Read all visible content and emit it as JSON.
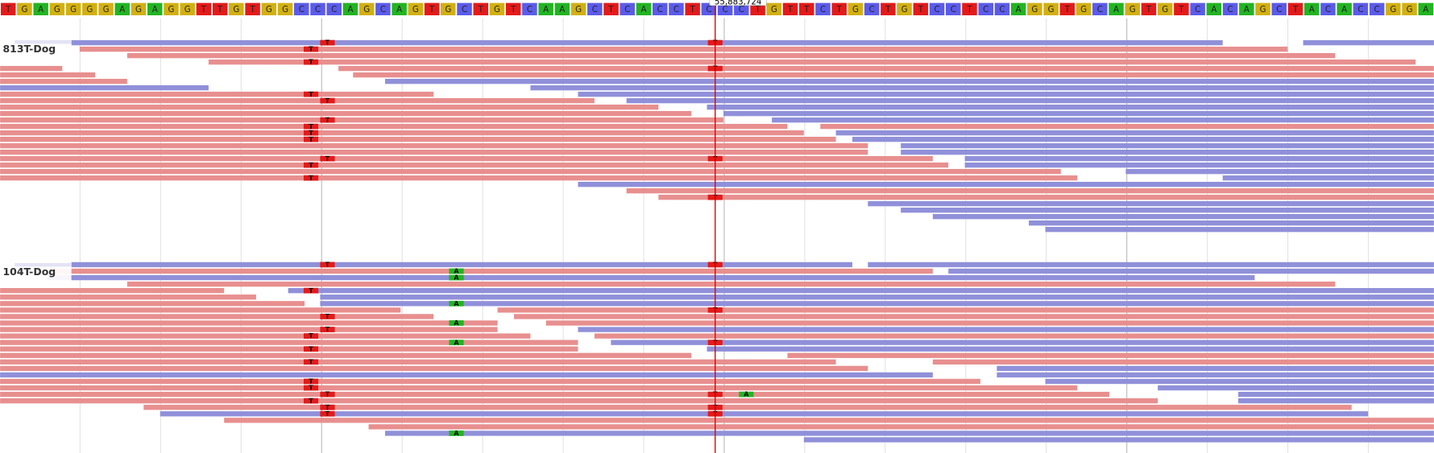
{
  "reference": {
    "bases": [
      "T",
      "G",
      "A",
      "G",
      "G",
      "G",
      "G",
      "A",
      "G",
      "A",
      "G",
      "G",
      "T",
      "T",
      "G",
      "T",
      "G",
      "G",
      "C",
      "C",
      "C",
      "A",
      "G",
      "C",
      "A",
      "G",
      "T",
      "G",
      "C",
      "T",
      "G",
      "T",
      "C",
      "A",
      "A",
      "G",
      "C",
      "T",
      "C",
      "A",
      "C",
      "C",
      "T",
      "C",
      "C",
      "C",
      "T",
      "G",
      "T",
      "T",
      "C",
      "T",
      "G",
      "C",
      "T",
      "G",
      "T",
      "C",
      "C",
      "T",
      "C",
      "C",
      "A",
      "G",
      "G",
      "T",
      "G",
      "C",
      "A",
      "G",
      "T",
      "G",
      "T",
      "C",
      "A",
      "C",
      "A",
      "G",
      "C",
      "T",
      "A",
      "C",
      "A",
      "C",
      "C",
      "G",
      "G",
      "A"
    ]
  },
  "base_colors": {
    "A": "#22b422",
    "C": "#5b5bea",
    "G": "#d2b012",
    "T": "#e41a1a"
  },
  "position_label": "55,883,724",
  "tracks": [
    {
      "name": "813T-Dog",
      "mismatches": [
        "T",
        "T",
        "T",
        "T",
        "T",
        "T",
        "T",
        "T",
        "T",
        "T",
        "T",
        "T",
        "T",
        "T",
        "T",
        "T"
      ]
    },
    {
      "name": "104T-Dog",
      "mismatches": [
        "T",
        "T",
        "A",
        "A",
        "T",
        "A",
        "T",
        "T",
        "A",
        "T",
        "T",
        "A",
        "T",
        "T",
        "T",
        "T",
        "T",
        "T",
        "T",
        "A",
        "T",
        "T",
        "T",
        "T",
        "T",
        "A"
      ]
    }
  ]
}
